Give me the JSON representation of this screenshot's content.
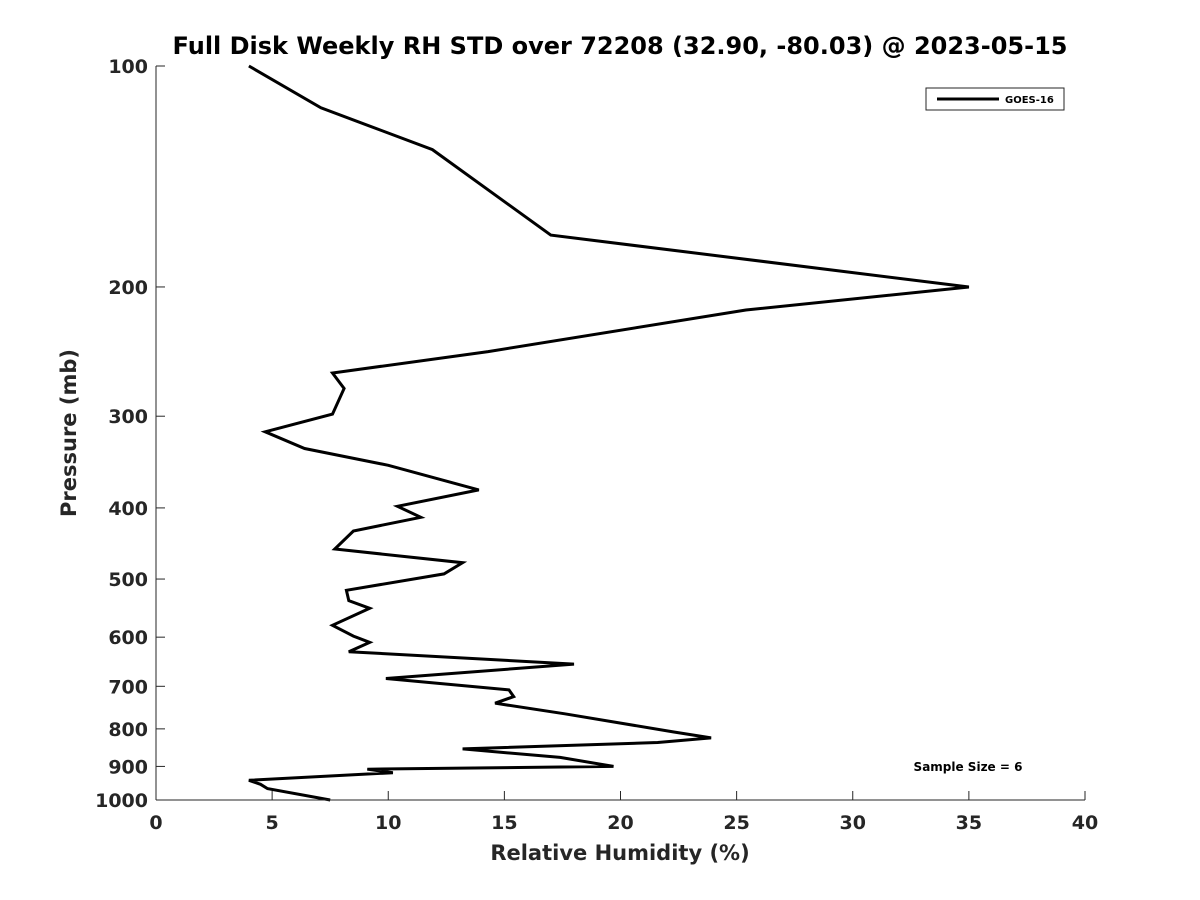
{
  "chart_data": {
    "type": "line",
    "title": "Full Disk Weekly RH STD over 72208 (32.90, -80.03) @ 2023-05-15",
    "xlabel": "Relative Humidity (%)",
    "ylabel": "Pressure (mb)",
    "xlim": [
      0,
      40
    ],
    "ylim": [
      100,
      1000
    ],
    "yscale": "log",
    "yaxis_direction": "reversed",
    "grid": false,
    "legend_position": "top-right",
    "x_ticks": [
      "0",
      "5",
      "10",
      "15",
      "20",
      "25",
      "30",
      "35",
      "40"
    ],
    "y_ticks": [
      "100",
      "200",
      "300",
      "400",
      "500",
      "600",
      "700",
      "800",
      "900",
      "1000"
    ],
    "series": [
      {
        "name": "GOES-16",
        "color": "#000000",
        "x": [
          4.0,
          7.1,
          11.9,
          17.0,
          35.0,
          25.4,
          14.3,
          7.6,
          8.1,
          7.6,
          4.7,
          6.4,
          10.0,
          13.9,
          10.4,
          11.4,
          8.5,
          7.7,
          13.2,
          12.4,
          8.2,
          8.3,
          9.2,
          7.6,
          8.5,
          9.2,
          8.3,
          18.0,
          9.9,
          15.2,
          15.4,
          14.6,
          17.6,
          22.3,
          23.9,
          21.6,
          13.2,
          17.4,
          19.7,
          9.1,
          10.2,
          4.0,
          4.5,
          4.8,
          7.5
        ],
        "y": [
          100,
          114,
          130,
          170,
          200,
          215,
          245,
          262,
          275,
          298,
          315,
          332,
          350,
          378,
          398,
          412,
          430,
          455,
          475,
          492,
          518,
          535,
          548,
          578,
          598,
          610,
          628,
          653,
          683,
          708,
          723,
          738,
          763,
          808,
          823,
          835,
          852,
          875,
          900,
          908,
          918,
          940,
          952,
          965,
          1000
        ]
      }
    ],
    "annotations": [
      "Sample Size = 6"
    ]
  }
}
